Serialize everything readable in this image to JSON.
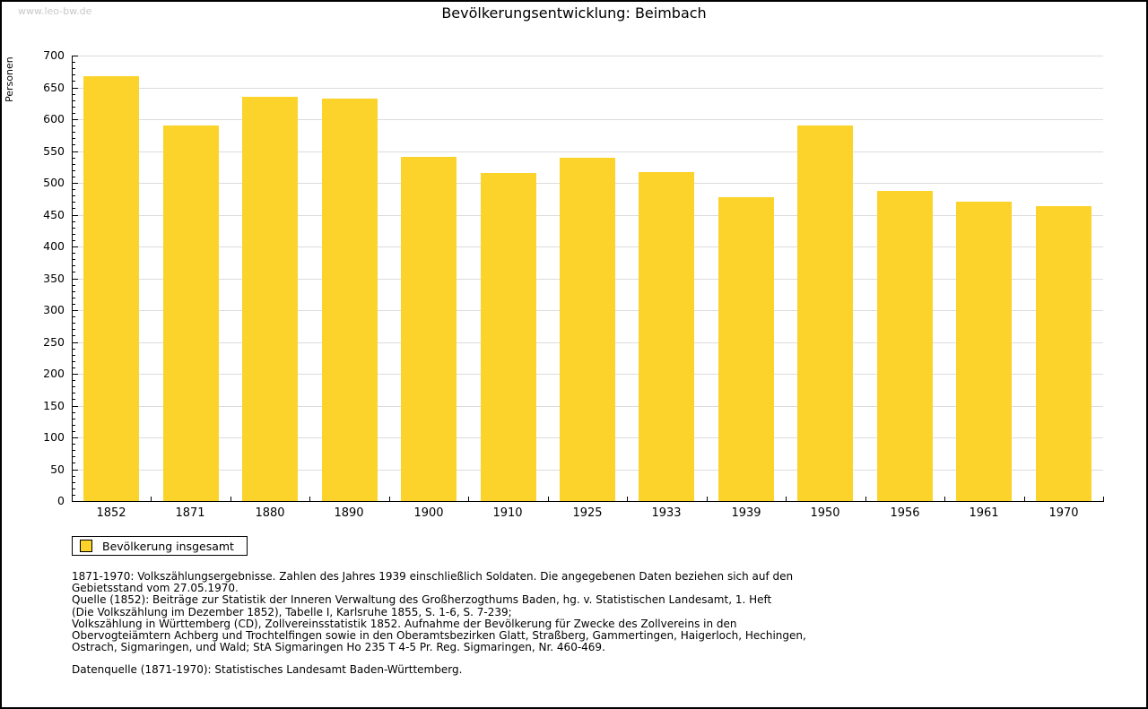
{
  "watermark": "www.leo-bw.de",
  "title": "Bevölkerungsentwicklung: Beimbach",
  "chart_data": {
    "type": "bar",
    "title": "Bevölkerungsentwicklung: Beimbach",
    "xlabel": "",
    "ylabel": "Personen",
    "categories": [
      "1852",
      "1871",
      "1880",
      "1890",
      "1900",
      "1910",
      "1925",
      "1933",
      "1939",
      "1950",
      "1956",
      "1961",
      "1970"
    ],
    "series": [
      {
        "name": "Bevölkerung insgesamt",
        "values": [
          667,
          590,
          635,
          633,
          541,
          515,
          539,
          517,
          477,
          590,
          488,
          471,
          463
        ]
      }
    ],
    "ylim": [
      0,
      700
    ],
    "ytick_step": 50,
    "ytick_minor_step": 10,
    "grid": true,
    "legend_position": "bottom-left"
  },
  "legend": {
    "label": "Bevölkerung insgesamt"
  },
  "footnotes": {
    "lines": [
      "1871-1970: Volkszählungsergebnisse. Zahlen des Jahres 1939 einschließlich Soldaten. Die angegebenen Daten beziehen sich auf den",
      "Gebietsstand vom 27.05.1970.",
      "Quelle (1852): Beiträge zur Statistik der Inneren Verwaltung des Großherzogthums Baden, hg. v. Statistischen Landesamt, 1. Heft",
      "(Die Volkszählung im Dezember 1852), Tabelle I, Karlsruhe 1855, S. 1-6, S. 7-239;",
      "Volkszählung in Württemberg (CD), Zollvereinsstatistik 1852. Aufnahme der Bevölkerung für Zwecke des Zollvereins in den",
      "Obervogteiämtern Achberg und Trochtelfingen sowie in den Oberamtsbezirken Glatt, Straßberg, Gammertingen, Haigerloch, Hechingen,",
      "Ostrach, Sigmaringen, und Wald; StA Sigmaringen Ho 235 T 4-5 Pr. Reg. Sigmaringen, Nr. 460-469."
    ],
    "datasource": "Datenquelle (1871-1970): Statistisches Landesamt Baden-Württemberg."
  },
  "colors": {
    "bar": "#FCD32B",
    "grid": "#DCDCDC",
    "axis": "#000000",
    "watermark": "#C8C8C8"
  }
}
